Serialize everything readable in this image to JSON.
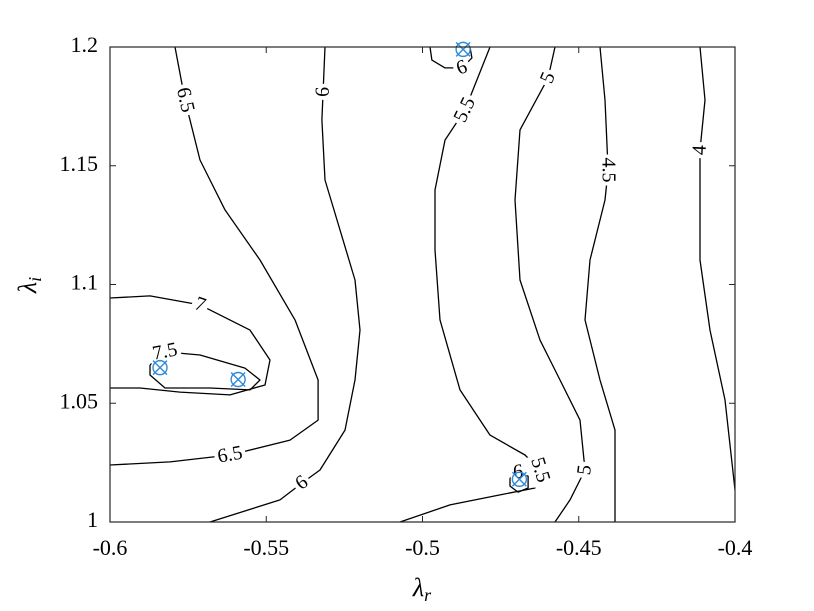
{
  "chart_data": {
    "type": "contour",
    "xlabel": {
      "symbol": "λ",
      "subscript": "r"
    },
    "ylabel": {
      "symbol": "λ",
      "subscript": "i"
    },
    "xlim": [
      -0.6,
      -0.4
    ],
    "ylim": [
      1,
      1.2
    ],
    "xticks": [
      -0.6,
      -0.55,
      -0.5,
      -0.45,
      -0.4
    ],
    "yticks": [
      1,
      1.05,
      1.1,
      1.15,
      1.2
    ],
    "line_color": "#000000",
    "contours": [
      {
        "level": 6.5,
        "x": [
          -0.5792,
          -0.576,
          -0.5712,
          -0.5632,
          -0.552,
          -0.5408,
          -0.5334,
          -0.5334,
          -0.5424,
          -0.5616,
          -0.5808,
          -0.6
        ],
        "y": [
          1.2,
          1.1777,
          1.1524,
          1.1314,
          1.1103,
          1.0851,
          1.0598,
          1.0429,
          1.0345,
          1.0282,
          1.0253,
          1.024
        ]
      },
      {
        "level": 7,
        "x": [
          -0.6,
          -0.5872,
          -0.5712,
          -0.5552,
          -0.5488,
          -0.5504,
          -0.5616,
          -0.5776,
          -0.5904,
          -0.6
        ],
        "y": [
          1.0943,
          1.0952,
          1.0914,
          1.0808,
          1.0682,
          1.0577,
          1.0535,
          1.0547,
          1.0564,
          1.0564
        ]
      },
      {
        "level": 7.5,
        "x": [
          -0.5872,
          -0.5824,
          -0.5712,
          -0.5568,
          -0.552,
          -0.5552,
          -0.568,
          -0.5824,
          -0.5872,
          -0.5872
        ],
        "y": [
          1.0661,
          1.0716,
          1.0703,
          1.0648,
          1.0598,
          1.0556,
          1.0564,
          1.0564,
          1.0619,
          1.0661
        ]
      },
      {
        "level": 6,
        "x": [
          -0.5312,
          -0.5318,
          -0.5322,
          -0.5312,
          -0.5264,
          -0.5216,
          -0.52,
          -0.5216,
          -0.5248,
          -0.5328,
          -0.5386,
          -0.5456,
          -0.568
        ],
        "y": [
          1.2,
          1.1811,
          1.1693,
          1.144,
          1.123,
          1.1019,
          1.0808,
          1.0598,
          1.0387,
          1.0219,
          1.0164,
          1.0093,
          1.0
        ]
      },
      {
        "level": 5.5,
        "x": [
          -0.4784,
          -0.4864,
          -0.4928,
          -0.496,
          -0.496,
          -0.4944,
          -0.488,
          -0.4784,
          -0.4672,
          -0.4624,
          -0.464,
          -0.4752,
          -0.4912,
          -0.5072
        ],
        "y": [
          1.2,
          1.1735,
          1.1608,
          1.1398,
          1.1145,
          1.0851,
          1.0556,
          1.0366,
          1.0282,
          1.0219,
          1.0143,
          1.0114,
          1.0072,
          1.0
        ]
      },
      {
        "level": 6,
        "x": [
          -0.4976,
          -0.497,
          -0.4928,
          -0.4874,
          -0.4842,
          -0.4848
        ],
        "y": [
          1.2,
          1.1945,
          1.1912,
          1.1912,
          1.1954,
          1.2
        ]
      },
      {
        "level": 6,
        "x": [
          -0.472,
          -0.4694,
          -0.4662,
          -0.4662,
          -0.4694,
          -0.472,
          -0.472
        ],
        "y": [
          1.0185,
          1.021,
          1.0193,
          1.0143,
          1.0126,
          1.0151,
          1.0185
        ]
      },
      {
        "level": 5,
        "x": [
          -0.4576,
          -0.4598,
          -0.4688,
          -0.4704,
          -0.4688,
          -0.4624,
          -0.456,
          -0.4496,
          -0.448,
          -0.4528,
          -0.4576
        ],
        "y": [
          1.2,
          1.187,
          1.1651,
          1.1356,
          1.1019,
          1.0766,
          1.0598,
          1.0429,
          1.0219,
          1.0093,
          1.0
        ]
      },
      {
        "level": 4.5,
        "x": [
          -0.4432,
          -0.4416,
          -0.4406,
          -0.4416,
          -0.4464,
          -0.448,
          -0.4432,
          -0.4384,
          -0.4384,
          -0.4384
        ],
        "y": [
          1.2,
          1.1777,
          1.1482,
          1.1356,
          1.1103,
          1.0851,
          1.0598,
          1.0387,
          1.0177,
          1.0
        ]
      },
      {
        "level": 4,
        "x": [
          -0.4112,
          -0.4096,
          -0.4112,
          -0.4112,
          -0.4112,
          -0.408,
          -0.4032,
          -0.4
        ],
        "y": [
          1.2,
          1.1777,
          1.1566,
          1.1356,
          1.1103,
          1.0808,
          1.0514,
          1.0135
        ]
      }
    ],
    "points": {
      "color": "#2f8ad8",
      "x": [
        -0.584,
        -0.559,
        -0.487,
        -0.469
      ],
      "y": [
        1.065,
        1.06,
        1.199,
        1.018
      ]
    }
  }
}
